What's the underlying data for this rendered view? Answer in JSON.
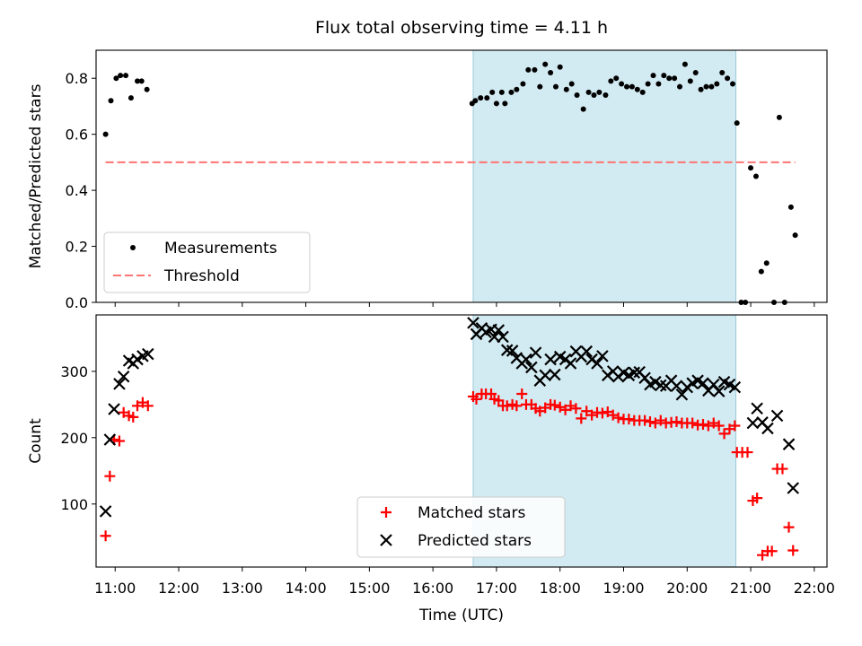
{
  "chart_data": [
    {
      "type": "scatter",
      "title": "Flux total observing time = 4.11 h",
      "ylabel": "Matched/Predicted stars",
      "xlabel": "",
      "xlim": [
        "10:42",
        "22:12"
      ],
      "ylim": [
        0,
        0.9
      ],
      "yticks": [
        "0.0",
        "0.2",
        "0.4",
        "0.6",
        "0.8"
      ],
      "legend_position": "lower-left",
      "shaded_region": [
        "16:38",
        "20:46"
      ],
      "series": [
        {
          "name": "Measurements",
          "marker": "dot",
          "color": "#000000",
          "points": [
            [
              "10:51",
              0.6
            ],
            [
              "10:56",
              0.72
            ],
            [
              "11:01",
              0.8
            ],
            [
              "11:05",
              0.81
            ],
            [
              "11:10",
              0.81
            ],
            [
              "11:15",
              0.73
            ],
            [
              "11:21",
              0.79
            ],
            [
              "11:25",
              0.79
            ],
            [
              "11:30",
              0.76
            ],
            [
              "16:37",
              0.71
            ],
            [
              "16:40",
              0.72
            ],
            [
              "16:45",
              0.73
            ],
            [
              "16:51",
              0.73
            ],
            [
              "16:56",
              0.75
            ],
            [
              "17:00",
              0.71
            ],
            [
              "17:05",
              0.75
            ],
            [
              "17:08",
              0.71
            ],
            [
              "17:14",
              0.75
            ],
            [
              "17:19",
              0.76
            ],
            [
              "17:25",
              0.78
            ],
            [
              "17:30",
              0.83
            ],
            [
              "17:36",
              0.83
            ],
            [
              "17:41",
              0.77
            ],
            [
              "17:46",
              0.85
            ],
            [
              "17:51",
              0.82
            ],
            [
              "17:56",
              0.77
            ],
            [
              "18:00",
              0.84
            ],
            [
              "18:06",
              0.76
            ],
            [
              "18:11",
              0.78
            ],
            [
              "18:16",
              0.74
            ],
            [
              "18:22",
              0.69
            ],
            [
              "18:27",
              0.75
            ],
            [
              "18:32",
              0.74
            ],
            [
              "18:37",
              0.75
            ],
            [
              "18:43",
              0.74
            ],
            [
              "18:48",
              0.79
            ],
            [
              "18:53",
              0.8
            ],
            [
              "18:58",
              0.78
            ],
            [
              "19:03",
              0.77
            ],
            [
              "19:08",
              0.77
            ],
            [
              "19:13",
              0.76
            ],
            [
              "19:18",
              0.75
            ],
            [
              "19:23",
              0.78
            ],
            [
              "19:28",
              0.81
            ],
            [
              "19:33",
              0.78
            ],
            [
              "19:38",
              0.81
            ],
            [
              "19:43",
              0.8
            ],
            [
              "19:48",
              0.8
            ],
            [
              "19:53",
              0.77
            ],
            [
              "19:58",
              0.85
            ],
            [
              "20:03",
              0.79
            ],
            [
              "20:08",
              0.82
            ],
            [
              "20:13",
              0.76
            ],
            [
              "20:18",
              0.77
            ],
            [
              "20:23",
              0.77
            ],
            [
              "20:28",
              0.78
            ],
            [
              "20:33",
              0.82
            ],
            [
              "20:38",
              0.8
            ],
            [
              "20:43",
              0.78
            ],
            [
              "20:47",
              0.64
            ],
            [
              "20:51",
              0.0
            ],
            [
              "20:55",
              0.0
            ],
            [
              "21:00",
              0.48
            ],
            [
              "21:05",
              0.45
            ],
            [
              "21:10",
              0.11
            ],
            [
              "21:15",
              0.14
            ],
            [
              "21:22",
              0.0
            ],
            [
              "21:27",
              0.66
            ],
            [
              "21:32",
              0.0
            ],
            [
              "21:38",
              0.34
            ],
            [
              "21:42",
              0.24
            ]
          ]
        },
        {
          "name": "Threshold",
          "marker": "dashed-line",
          "color": "#ff7373",
          "points": [
            [
              "10:51",
              0.5
            ],
            [
              "21:42",
              0.5
            ]
          ]
        }
      ]
    },
    {
      "type": "scatter",
      "title": "",
      "ylabel": "Count",
      "xlabel": "Time (UTC)",
      "xlim": [
        "10:42",
        "22:12"
      ],
      "ylim": [
        5,
        385
      ],
      "yticks": [
        "100",
        "200",
        "300"
      ],
      "xticks": [
        "11:00",
        "12:00",
        "13:00",
        "14:00",
        "15:00",
        "16:00",
        "17:00",
        "18:00",
        "19:00",
        "20:00",
        "21:00",
        "22:00"
      ],
      "legend_position": "lower-center",
      "shaded_region": [
        "16:38",
        "20:46"
      ],
      "series": [
        {
          "name": "Matched stars",
          "marker": "plus",
          "color": "#ff0000",
          "points": [
            [
              "10:51",
              52
            ],
            [
              "10:55",
              142
            ],
            [
              "10:59",
              197
            ],
            [
              "11:04",
              195
            ],
            [
              "11:08",
              238
            ],
            [
              "11:13",
              233
            ],
            [
              "11:17",
              231
            ],
            [
              "11:21",
              248
            ],
            [
              "11:26",
              253
            ],
            [
              "11:31",
              248
            ],
            [
              "16:38",
              262
            ],
            [
              "16:41",
              258
            ],
            [
              "16:46",
              266
            ],
            [
              "16:50",
              266
            ],
            [
              "16:55",
              266
            ],
            [
              "16:58",
              258
            ],
            [
              "17:02",
              256
            ],
            [
              "17:06",
              248
            ],
            [
              "17:10",
              248
            ],
            [
              "17:15",
              250
            ],
            [
              "17:19",
              248
            ],
            [
              "17:24",
              266
            ],
            [
              "17:28",
              250
            ],
            [
              "17:33",
              250
            ],
            [
              "17:37",
              244
            ],
            [
              "17:41",
              240
            ],
            [
              "17:46",
              245
            ],
            [
              "17:51",
              250
            ],
            [
              "17:55",
              249
            ],
            [
              "18:00",
              246
            ],
            [
              "18:05",
              242
            ],
            [
              "18:10",
              248
            ],
            [
              "18:15",
              244
            ],
            [
              "18:20",
              229
            ],
            [
              "18:25",
              240
            ],
            [
              "18:30",
              234
            ],
            [
              "18:35",
              238
            ],
            [
              "18:40",
              237
            ],
            [
              "18:45",
              239
            ],
            [
              "18:50",
              234
            ],
            [
              "18:55",
              230
            ],
            [
              "19:00",
              228
            ],
            [
              "19:05",
              228
            ],
            [
              "19:10",
              226
            ],
            [
              "19:15",
              226
            ],
            [
              "19:20",
              226
            ],
            [
              "19:25",
              224
            ],
            [
              "19:30",
              222
            ],
            [
              "19:35",
              226
            ],
            [
              "19:40",
              222
            ],
            [
              "19:45",
              223
            ],
            [
              "19:50",
              224
            ],
            [
              "19:55",
              222
            ],
            [
              "20:00",
              222
            ],
            [
              "20:05",
              222
            ],
            [
              "20:10",
              219
            ],
            [
              "20:15",
              220
            ],
            [
              "20:20",
              218
            ],
            [
              "20:25",
              222
            ],
            [
              "20:30",
              218
            ],
            [
              "20:35",
              206
            ],
            [
              "20:40",
              213
            ],
            [
              "20:45",
              218
            ],
            [
              "20:47",
              178
            ],
            [
              "20:52",
              178
            ],
            [
              "20:57",
              178
            ],
            [
              "21:02",
              105
            ],
            [
              "21:06",
              109
            ],
            [
              "21:11",
              23
            ],
            [
              "21:16",
              29
            ],
            [
              "21:20",
              29
            ],
            [
              "21:25",
              153
            ],
            [
              "21:30",
              153
            ],
            [
              "21:36",
              65
            ],
            [
              "21:40",
              30
            ]
          ]
        },
        {
          "name": "Predicted stars",
          "marker": "x",
          "color": "#000000",
          "points": [
            [
              "10:51",
              89
            ],
            [
              "10:55",
              197
            ],
            [
              "10:59",
              243
            ],
            [
              "11:04",
              281
            ],
            [
              "11:08",
              292
            ],
            [
              "11:13",
              316
            ],
            [
              "11:17",
              312
            ],
            [
              "11:21",
              318
            ],
            [
              "11:26",
              323
            ],
            [
              "11:31",
              326
            ],
            [
              "16:38",
              373
            ],
            [
              "16:41",
              356
            ],
            [
              "16:46",
              365
            ],
            [
              "16:50",
              359
            ],
            [
              "16:55",
              363
            ],
            [
              "16:58",
              352
            ],
            [
              "17:02",
              362
            ],
            [
              "17:06",
              352
            ],
            [
              "17:10",
              332
            ],
            [
              "17:15",
              331
            ],
            [
              "17:19",
              320
            ],
            [
              "17:24",
              312
            ],
            [
              "17:28",
              318
            ],
            [
              "17:33",
              306
            ],
            [
              "17:37",
              328
            ],
            [
              "17:41",
              286
            ],
            [
              "17:46",
              294
            ],
            [
              "17:51",
              318
            ],
            [
              "17:55",
              295
            ],
            [
              "18:00",
              322
            ],
            [
              "18:05",
              318
            ],
            [
              "18:10",
              312
            ],
            [
              "18:15",
              330
            ],
            [
              "18:20",
              322
            ],
            [
              "18:25",
              330
            ],
            [
              "18:30",
              318
            ],
            [
              "18:35",
              312
            ],
            [
              "18:40",
              323
            ],
            [
              "18:45",
              294
            ],
            [
              "18:50",
              300
            ],
            [
              "18:55",
              292
            ],
            [
              "19:00",
              298
            ],
            [
              "19:05",
              294
            ],
            [
              "19:10",
              298
            ],
            [
              "19:15",
              299
            ],
            [
              "19:20",
              290
            ],
            [
              "19:25",
              280
            ],
            [
              "19:30",
              284
            ],
            [
              "19:35",
              279
            ],
            [
              "19:40",
              278
            ],
            [
              "19:45",
              286
            ],
            [
              "19:50",
              278
            ],
            [
              "19:55",
              265
            ],
            [
              "20:00",
              276
            ],
            [
              "20:05",
              282
            ],
            [
              "20:10",
              286
            ],
            [
              "20:15",
              282
            ],
            [
              "20:20",
              271
            ],
            [
              "20:25",
              280
            ],
            [
              "20:30",
              270
            ],
            [
              "20:35",
              284
            ],
            [
              "20:40",
              280
            ],
            [
              "20:45",
              276
            ],
            [
              "21:02",
              222
            ],
            [
              "21:06",
              244
            ],
            [
              "21:11",
              223
            ],
            [
              "21:16",
              214
            ],
            [
              "21:25",
              233
            ],
            [
              "21:36",
              190
            ],
            [
              "21:40",
              124
            ]
          ]
        }
      ]
    }
  ]
}
